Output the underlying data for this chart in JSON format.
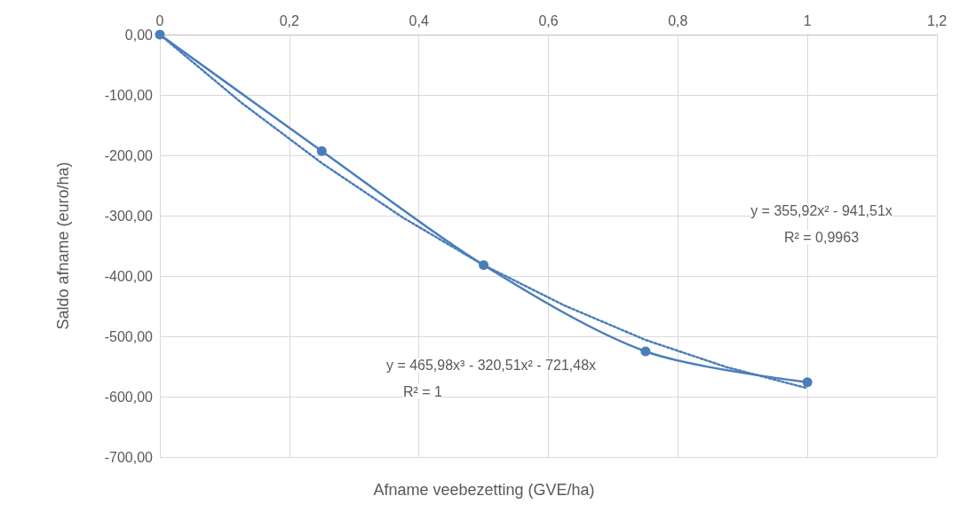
{
  "chart_data": {
    "type": "line",
    "xlabel": "Afname veebezetting (GVE/ha)",
    "ylabel": "Saldo afname (euro/ha)",
    "x": [
      0,
      0.25,
      0.5,
      0.75,
      1
    ],
    "series": [
      {
        "color": "#4a7ebb",
        "values": [
          0,
          -193,
          -382,
          -525,
          -576
        ],
        "marker": "circle",
        "line_style": "solid"
      },
      {
        "type": "line",
        "color": "#4a7ebb",
        "x": [
          0,
          0.125,
          0.25,
          0.375,
          0.5,
          0.625,
          0.75,
          0.875,
          1
        ],
        "values": [
          0,
          -112,
          -213,
          -303,
          -382,
          -449,
          -506,
          -551,
          -586
        ],
        "marker": "none",
        "line_style": "dotted"
      }
    ],
    "xlim": [
      0,
      1.2
    ],
    "xticks": [
      0,
      {
        "value": 0.2,
        "label": "0,2"
      },
      {
        "value": 0.4,
        "label": "0,4"
      },
      {
        "value": 0.6,
        "label": "0,6"
      },
      {
        "value": 0.8,
        "label": "0,8"
      },
      1,
      {
        "value": 1.2,
        "label": "1,2"
      }
    ],
    "ylim": [
      -700,
      0
    ],
    "yticks": [
      {
        "value": 0,
        "label": "0,00"
      },
      {
        "value": -100,
        "label": "-100,00"
      },
      {
        "value": -200,
        "label": "-200,00"
      },
      {
        "value": -300,
        "label": "-300,00"
      },
      {
        "value": -400,
        "label": "-400,00"
      },
      {
        "value": -500,
        "label": "-500,00"
      },
      {
        "value": -600,
        "label": "-600,00"
      },
      {
        "value": -700,
        "label": "-700,00"
      }
    ],
    "grid": true,
    "annotations": [
      "y = 355,92x² - 941,51x",
      "R² = 0,9963",
      "y = 465,98x³ - 320,51x² - 721,48x",
      "R² = 1"
    ]
  }
}
